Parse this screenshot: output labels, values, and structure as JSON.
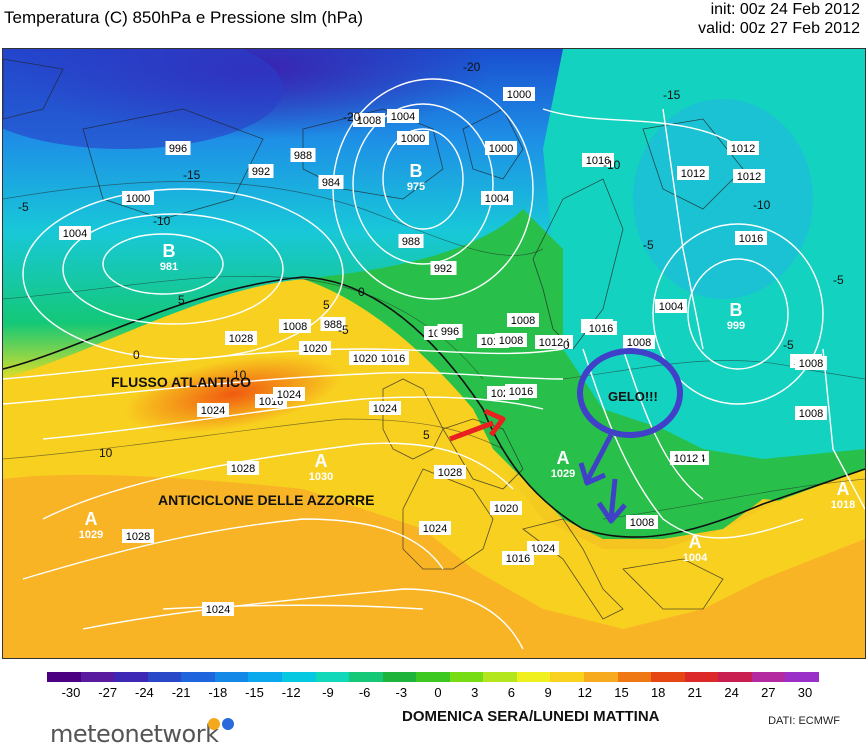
{
  "header": {
    "title": "Temperatura (C) 850hPa e Pressione slm (hPa)",
    "init": "init: 00z 24 Feb 2012",
    "valid": "valid: 00z 27 Feb 2012"
  },
  "map": {
    "annotations": {
      "flusso": "FLUSSO ATLANTICO",
      "anticiclone": "ANTICICLONE DELLE AZZORRE",
      "gelo": "GELO!!!"
    },
    "pressure_centers": [
      {
        "letter": "B",
        "value": "975"
      },
      {
        "letter": "B",
        "value": "981"
      },
      {
        "letter": "B",
        "value": "999"
      },
      {
        "letter": "A",
        "value": "1030"
      },
      {
        "letter": "A",
        "value": "1029"
      },
      {
        "letter": "A",
        "value": "1029"
      },
      {
        "letter": "A",
        "value": "1004"
      },
      {
        "letter": "A",
        "value": "1018"
      }
    ],
    "isobar_labels": [
      "1004",
      "1000",
      "996",
      "992",
      "988",
      "984",
      "988",
      "996",
      "1000",
      "1008",
      "1004",
      "1000",
      "1004",
      "1008",
      "1012",
      "1008",
      "1012",
      "1016",
      "1020",
      "1024",
      "1016",
      "1020",
      "1024",
      "1028",
      "1028",
      "1024",
      "1020",
      "1016",
      "1012",
      "1008",
      "1004",
      "1000",
      "992",
      "988",
      "996",
      "1008",
      "1012",
      "1016",
      "1020",
      "1024",
      "1016",
      "1012",
      "1008",
      "1004",
      "1012",
      "1016",
      "1008",
      "1004",
      "1028",
      "1024",
      "1028",
      "1024",
      "1016",
      "1008",
      "1012",
      "1016",
      "1012",
      "1008"
    ],
    "isotherm_labels": [
      "-20",
      "-15",
      "-10",
      "-5",
      "-20",
      "0",
      "5",
      "0",
      "-5",
      "-15",
      "-10",
      "-5",
      "0",
      "5",
      "10",
      "5",
      "10",
      "-10",
      "-5",
      "-5"
    ],
    "colors": {
      "arrow_red": "#e82020",
      "arrow_blue": "#4040c8",
      "isobar": "#ffffff"
    }
  },
  "colorbar": {
    "ticks": [
      "-30",
      "-27",
      "-24",
      "-21",
      "-18",
      "-15",
      "-12",
      "-9",
      "-6",
      "-3",
      "0",
      "3",
      "6",
      "9",
      "12",
      "15",
      "18",
      "21",
      "24",
      "27",
      "30"
    ],
    "colors": [
      "#4b0082",
      "#5a1aa0",
      "#3c28b4",
      "#2848c8",
      "#1e64dc",
      "#1488e6",
      "#0aa8ec",
      "#06c8e0",
      "#10d8b8",
      "#14c878",
      "#1eb43c",
      "#3cc820",
      "#78dc14",
      "#b4e61e",
      "#f0f01e",
      "#f8d21e",
      "#f8aa1e",
      "#f07814",
      "#e64614",
      "#dc2828",
      "#c81e50",
      "#b428a0",
      "#9a30c8"
    ]
  },
  "footer": {
    "caption": "DOMENICA SERA/LUNEDI MATTINA",
    "source": "DATI:  ECMWF",
    "logo": "meteonetwork"
  }
}
